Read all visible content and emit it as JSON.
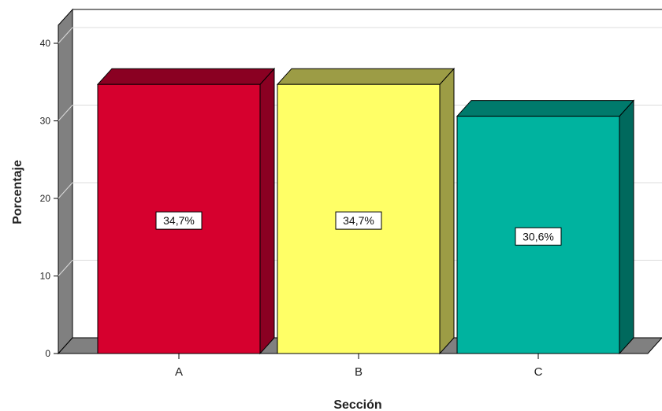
{
  "chart_data": {
    "type": "bar",
    "title": "",
    "xlabel": "Sección",
    "ylabel": "Porcentaje",
    "categories": [
      "A",
      "B",
      "C"
    ],
    "values": [
      34.7,
      34.7,
      30.6
    ],
    "value_labels": [
      "34,7%",
      "34,7%",
      "30,6%"
    ],
    "yticks": [
      0,
      10,
      20,
      30,
      40
    ],
    "ylim": [
      0,
      42
    ],
    "grid": true,
    "legend": "none",
    "three_d": true,
    "colors": {
      "bars_front": [
        "#d6002e",
        "#ffff66",
        "#00b39f"
      ],
      "bars_top": [
        "#8a0022",
        "#9c9c45",
        "#007a6c"
      ],
      "bars_side": [
        "#8a0022",
        "#9c9c45",
        "#00695d"
      ],
      "floor": "#808080",
      "wall": "#808080",
      "gridline": "#dcdcdc"
    }
  }
}
